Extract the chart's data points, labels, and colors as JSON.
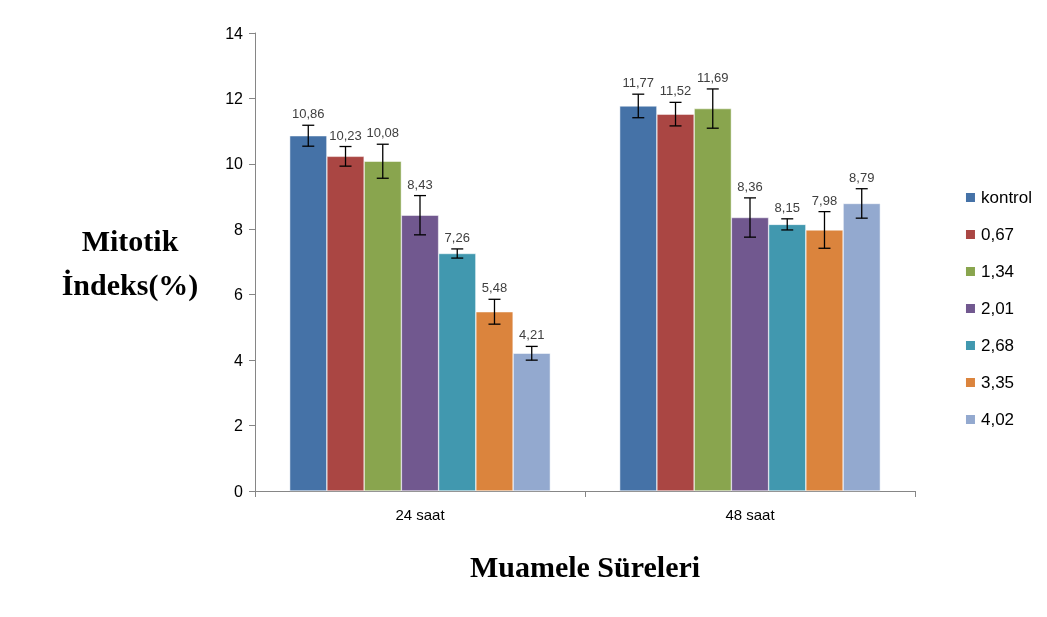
{
  "chart_data": {
    "type": "bar",
    "xlabel": "Muamele Süreleri",
    "ylabel": "Mitotik İndeks(%)",
    "categories": [
      "24 saat",
      "48 saat"
    ],
    "series": [
      {
        "name": "kontrol",
        "color": "#4572a7",
        "values": [
          10.86,
          11.77
        ],
        "errors": [
          0.32,
          0.36
        ],
        "value_labels": [
          "10,86",
          "11,77"
        ]
      },
      {
        "name": "0,67",
        "color": "#aa4643",
        "values": [
          10.23,
          11.52
        ],
        "errors": [
          0.3,
          0.36
        ],
        "value_labels": [
          "10,23",
          "11,52"
        ]
      },
      {
        "name": "1,34",
        "color": "#89a54e",
        "values": [
          10.08,
          11.69
        ],
        "errors": [
          0.52,
          0.6
        ],
        "value_labels": [
          "10,08",
          "11,69"
        ]
      },
      {
        "name": "2,01",
        "color": "#71588f",
        "values": [
          8.43,
          8.36
        ],
        "errors": [
          0.6,
          0.6
        ],
        "value_labels": [
          "8,43",
          "8,36"
        ]
      },
      {
        "name": "2,68",
        "color": "#4198af",
        "values": [
          7.26,
          8.15
        ],
        "errors": [
          0.14,
          0.17
        ],
        "value_labels": [
          "7,26",
          "8,15"
        ]
      },
      {
        "name": "3,35",
        "color": "#db843d",
        "values": [
          5.48,
          7.98
        ],
        "errors": [
          0.38,
          0.56
        ],
        "value_labels": [
          "5,48",
          "7,98"
        ]
      },
      {
        "name": "4,02",
        "color": "#93a9cf",
        "values": [
          4.21,
          8.79
        ],
        "errors": [
          0.21,
          0.45
        ],
        "value_labels": [
          "4,21",
          "8,79"
        ]
      }
    ],
    "ylim": [
      0,
      14
    ],
    "yticks": [
      0,
      2,
      4,
      6,
      8,
      10,
      12,
      14
    ],
    "grid": false,
    "legend": "right"
  }
}
